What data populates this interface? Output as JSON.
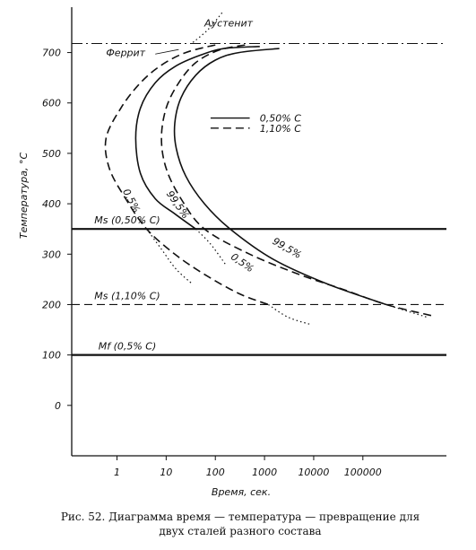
{
  "chart_data": {
    "type": "line",
    "title": "",
    "xlabel": "Время, сек.",
    "ylabel": "Температура, °С",
    "x_scale": "log",
    "x_ticks": [
      1,
      10,
      100,
      1000,
      10000,
      100000
    ],
    "x_tick_labels": [
      "1",
      "10",
      "100",
      "1000",
      "10000",
      "100000"
    ],
    "y_ticks": [
      0,
      100,
      200,
      300,
      400,
      500,
      600,
      700
    ],
    "y_tick_labels": [
      "0",
      "100",
      "200",
      "300",
      "400",
      "500",
      "600",
      "700"
    ],
    "ylim": [
      -100,
      790
    ],
    "xlim": [
      0.12,
      5000000
    ],
    "legend": {
      "placement": "center-right",
      "entries": [
        {
          "label": "0,50% С",
          "style": "solid"
        },
        {
          "label": "1,10% С",
          "style": "dashed"
        }
      ]
    },
    "reference_lines": [
      {
        "label": "Ms (0,50% С)",
        "y": 350,
        "style": "solid"
      },
      {
        "label": "Ms (1,10% С)",
        "y": 200,
        "style": "dashed"
      },
      {
        "label": "Mf (0,5% С)",
        "y": 100,
        "style": "solid"
      },
      {
        "label": "",
        "y": 718,
        "style": "dashdot"
      }
    ],
    "annotations": [
      "Аустенит",
      "Феррит",
      "0,5%",
      "99,5%",
      "0,5%",
      "99,5%"
    ],
    "series": [
      {
        "name": "0,50% С",
        "style": "solid",
        "points": [
          [
            800,
            712
          ],
          [
            150,
            708
          ],
          [
            50,
            695
          ],
          [
            15,
            672
          ],
          [
            6,
            640
          ],
          [
            3,
            590
          ],
          [
            2.4,
            530
          ],
          [
            3,
            460
          ],
          [
            6,
            410
          ],
          [
            15,
            380
          ],
          [
            40,
            350
          ]
        ]
      },
      {
        "name": "0,50% С",
        "style": "solid",
        "points": [
          [
            2000,
            708
          ],
          [
            300,
            700
          ],
          [
            100,
            685
          ],
          [
            40,
            655
          ],
          [
            20,
            610
          ],
          [
            15,
            560
          ],
          [
            16,
            510
          ],
          [
            25,
            455
          ],
          [
            60,
            400
          ],
          [
            200,
            350
          ],
          [
            1500,
            290
          ],
          [
            20000,
            240
          ],
          [
            300000,
            200
          ]
        ]
      },
      {
        "name": "0,50% С",
        "style": "dotted",
        "points": [
          [
            40,
            350
          ],
          [
            80,
            320
          ],
          [
            160,
            280
          ]
        ]
      },
      {
        "name": "0,50% С",
        "style": "dotted",
        "points": [
          [
            300000,
            200
          ],
          [
            2000000,
            175
          ]
        ]
      },
      {
        "name": "1,10% С",
        "style": "dashed",
        "points": [
          [
            100,
            715
          ],
          [
            25,
            700
          ],
          [
            8,
            675
          ],
          [
            3,
            640
          ],
          [
            1.2,
            590
          ],
          [
            0.6,
            530
          ],
          [
            0.7,
            470
          ],
          [
            1.5,
            410
          ],
          [
            4,
            350
          ],
          [
            15,
            300
          ],
          [
            60,
            260
          ],
          [
            300,
            222
          ],
          [
            1200,
            200
          ]
        ]
      },
      {
        "name": "1,10% С",
        "style": "dashed",
        "points": [
          [
            400,
            715
          ],
          [
            120,
            705
          ],
          [
            40,
            680
          ],
          [
            18,
            640
          ],
          [
            10,
            590
          ],
          [
            8,
            530
          ],
          [
            10,
            470
          ],
          [
            20,
            410
          ],
          [
            60,
            350
          ],
          [
            500,
            300
          ],
          [
            5000,
            260
          ],
          [
            40000,
            230
          ],
          [
            300000,
            200
          ],
          [
            2500000,
            178
          ]
        ]
      },
      {
        "name": "1,10% С",
        "style": "dotted",
        "points": [
          [
            1200,
            200
          ],
          [
            3000,
            175
          ],
          [
            9000,
            160
          ]
        ]
      },
      {
        "name": "1,10% С",
        "style": "dotted",
        "points": [
          [
            4,
            350
          ],
          [
            8,
            310
          ],
          [
            16,
            270
          ],
          [
            35,
            240
          ]
        ]
      },
      {
        "name": "",
        "style": "dotted",
        "points": [
          [
            35,
            720
          ],
          [
            70,
            745
          ],
          [
            140,
            780
          ]
        ]
      }
    ]
  },
  "caption": {
    "line1": "Рис. 52. Диаграмма время — температура — превращение для",
    "line2": "двух сталей разного состава"
  }
}
